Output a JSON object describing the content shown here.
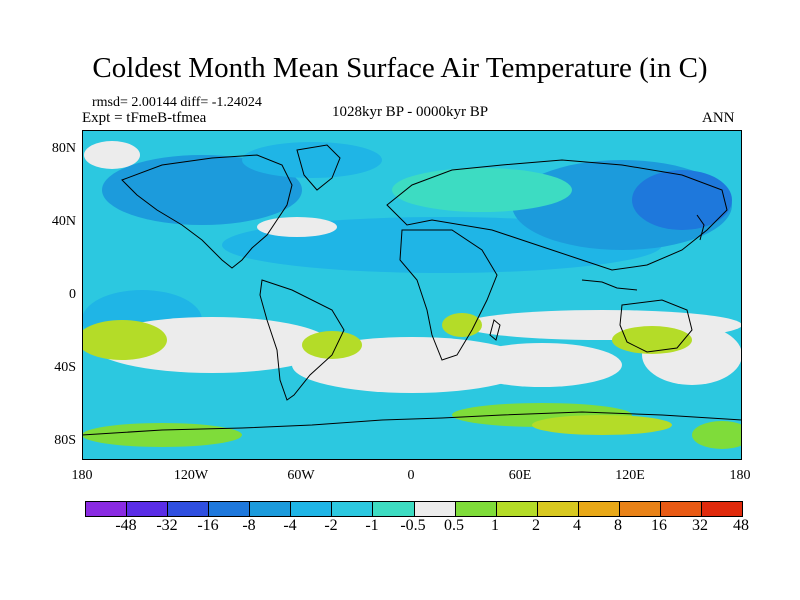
{
  "header": {
    "title": "Coldest Month Mean Surface Air Temperature (in C)",
    "stats": "rmsd= 2.00144  diff= -1.24024",
    "experiment": "Expt = tFmeB-tfmea",
    "period": "1028kyr BP - 0000kyr BP",
    "season": "ANN"
  },
  "axes": {
    "lat_labels": [
      "80N",
      "40N",
      "0",
      "40S",
      "80S"
    ],
    "lon_labels": [
      "180",
      "120W",
      "60W",
      "0",
      "60E",
      "120E",
      "180"
    ]
  },
  "colorbar": {
    "colors": [
      "#8a2be2",
      "#5a2de6",
      "#2f4fe0",
      "#1e78dc",
      "#1c9bdc",
      "#1fb5e6",
      "#2cc8e0",
      "#3ddcc2",
      "#ececec",
      "#7fdc3a",
      "#b4dc28",
      "#d8c820",
      "#e8a818",
      "#e88218",
      "#e85a14",
      "#e02a0c"
    ],
    "labels": [
      "-48",
      "-32",
      "-16",
      "-8",
      "-4",
      "-2",
      "-1",
      "-0.5",
      "0.5",
      "1",
      "2",
      "4",
      "8",
      "16",
      "32",
      "48"
    ]
  },
  "map_colors": {
    "base": "#2cc8e0",
    "cool": "#1fb5e6",
    "cooler": "#1c9bdc",
    "coolest": "#1e78dc",
    "mint": "#3ddcc2",
    "neutral": "#ececec",
    "warm": "#b4dc28",
    "warm_green": "#7fdc3a",
    "land_line": "#000000"
  }
}
